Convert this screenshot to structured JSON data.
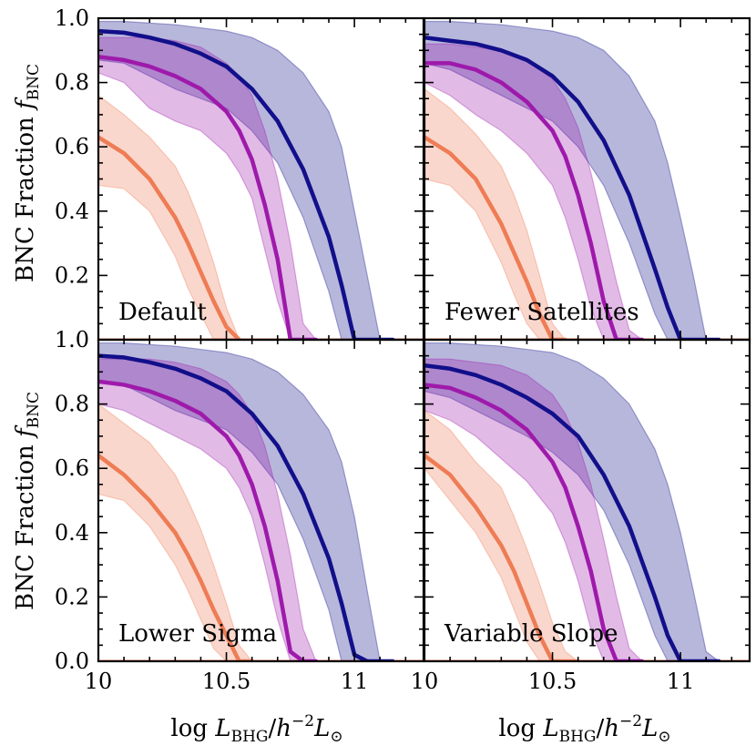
{
  "chart_data": {
    "type": "line",
    "xlabel": "log L_BHG / h^-2 L_sun",
    "ylabel": "BNC Fraction f_BNC",
    "xlim": [
      10.0,
      11.27
    ],
    "ylim": [
      0.0,
      1.0
    ],
    "x_ticks": [
      "10",
      "10.5",
      "11"
    ],
    "y_ticks": [
      "0.0",
      "0.2",
      "0.4",
      "0.6",
      "0.8",
      "1.0"
    ],
    "xlabel_parts": {
      "pre": "log ",
      "L": "L",
      "sub": "BHG",
      "slash": "/",
      "h": "h",
      "exp": "−2",
      "L2": "L",
      "sun": "⊙"
    },
    "ylabel_parts": {
      "text": "BNC Fraction ",
      "f": "f",
      "sub": "BNC"
    },
    "colors": {
      "orange": "#ee7c55",
      "purple": "#9e1aab",
      "navy": "#120f8a"
    },
    "panels": [
      {
        "label": "Default",
        "series": [
          {
            "name": "orange",
            "x": [
              10.0,
              10.1,
              10.2,
              10.3,
              10.35,
              10.4,
              10.45,
              10.5,
              10.55
            ],
            "median": [
              0.63,
              0.58,
              0.5,
              0.38,
              0.3,
              0.21,
              0.12,
              0.04,
              0.0
            ],
            "lower": [
              0.48,
              0.47,
              0.4,
              0.26,
              0.16,
              0.08,
              0.0,
              0.0,
              0.0
            ],
            "upper": [
              0.76,
              0.7,
              0.63,
              0.54,
              0.46,
              0.36,
              0.24,
              0.1,
              0.0
            ]
          },
          {
            "name": "purple",
            "x": [
              10.0,
              10.1,
              10.2,
              10.3,
              10.4,
              10.5,
              10.55,
              10.6,
              10.65,
              10.7,
              10.75,
              10.8,
              10.85
            ],
            "median": [
              0.88,
              0.87,
              0.85,
              0.82,
              0.78,
              0.71,
              0.65,
              0.56,
              0.42,
              0.25,
              0.0,
              0.0,
              0.0
            ],
            "lower": [
              0.83,
              0.8,
              0.72,
              0.68,
              0.65,
              0.58,
              0.52,
              0.44,
              0.28,
              0.12,
              0.0,
              0.0,
              0.0
            ],
            "upper": [
              0.94,
              0.94,
              0.94,
              0.93,
              0.91,
              0.86,
              0.82,
              0.76,
              0.65,
              0.5,
              0.3,
              0.05,
              0.0
            ]
          },
          {
            "name": "navy",
            "x": [
              10.0,
              10.1,
              10.2,
              10.3,
              10.4,
              10.5,
              10.6,
              10.7,
              10.8,
              10.9,
              10.95,
              11.0,
              11.05,
              11.1,
              11.15
            ],
            "median": [
              0.96,
              0.955,
              0.94,
              0.92,
              0.89,
              0.85,
              0.78,
              0.68,
              0.53,
              0.32,
              0.17,
              0.0,
              0.0,
              0.0,
              0.0
            ],
            "lower": [
              0.87,
              0.86,
              0.82,
              0.78,
              0.75,
              0.72,
              0.65,
              0.55,
              0.38,
              0.15,
              0.0,
              0.0,
              0.0,
              0.0,
              0.0
            ],
            "upper": [
              0.99,
              0.99,
              0.985,
              0.98,
              0.97,
              0.96,
              0.94,
              0.9,
              0.83,
              0.71,
              0.6,
              0.4,
              0.2,
              0.0,
              0.0
            ]
          }
        ]
      },
      {
        "label": "Fewer Satellites",
        "series": [
          {
            "name": "orange",
            "x": [
              10.0,
              10.1,
              10.2,
              10.3,
              10.35,
              10.4,
              10.45,
              10.5,
              10.55
            ],
            "median": [
              0.63,
              0.58,
              0.5,
              0.36,
              0.27,
              0.18,
              0.08,
              0.0,
              0.0
            ],
            "lower": [
              0.5,
              0.48,
              0.4,
              0.24,
              0.14,
              0.05,
              0.0,
              0.0,
              0.0
            ],
            "upper": [
              0.78,
              0.72,
              0.64,
              0.54,
              0.45,
              0.34,
              0.2,
              0.05,
              0.0
            ]
          },
          {
            "name": "purple",
            "x": [
              10.0,
              10.1,
              10.2,
              10.3,
              10.4,
              10.5,
              10.55,
              10.6,
              10.65,
              10.7,
              10.75,
              10.8,
              10.85
            ],
            "median": [
              0.86,
              0.86,
              0.84,
              0.8,
              0.74,
              0.65,
              0.57,
              0.45,
              0.3,
              0.12,
              0.0,
              0.0,
              0.0
            ],
            "lower": [
              0.8,
              0.76,
              0.7,
              0.65,
              0.58,
              0.48,
              0.38,
              0.25,
              0.1,
              0.0,
              0.0,
              0.0,
              0.0
            ],
            "upper": [
              0.92,
              0.92,
              0.91,
              0.9,
              0.87,
              0.81,
              0.75,
              0.66,
              0.52,
              0.35,
              0.18,
              0.03,
              0.0
            ]
          },
          {
            "name": "navy",
            "x": [
              10.0,
              10.1,
              10.2,
              10.3,
              10.4,
              10.5,
              10.6,
              10.7,
              10.8,
              10.9,
              10.95,
              11.0,
              11.05,
              11.1,
              11.15
            ],
            "median": [
              0.94,
              0.93,
              0.92,
              0.9,
              0.87,
              0.82,
              0.74,
              0.62,
              0.45,
              0.22,
              0.1,
              0.0,
              0.0,
              0.0,
              0.0
            ],
            "lower": [
              0.86,
              0.84,
              0.8,
              0.76,
              0.72,
              0.68,
              0.6,
              0.48,
              0.3,
              0.08,
              0.0,
              0.0,
              0.0,
              0.0,
              0.0
            ],
            "upper": [
              0.99,
              0.99,
              0.985,
              0.98,
              0.97,
              0.96,
              0.94,
              0.9,
              0.82,
              0.68,
              0.55,
              0.38,
              0.2,
              0.0,
              0.0
            ]
          }
        ]
      },
      {
        "label": "Lower Sigma",
        "series": [
          {
            "name": "orange",
            "x": [
              10.0,
              10.1,
              10.2,
              10.3,
              10.35,
              10.4,
              10.45,
              10.5,
              10.55,
              10.6
            ],
            "median": [
              0.64,
              0.58,
              0.5,
              0.4,
              0.33,
              0.25,
              0.16,
              0.08,
              0.0,
              0.0
            ],
            "lower": [
              0.52,
              0.5,
              0.42,
              0.3,
              0.22,
              0.13,
              0.04,
              0.0,
              0.0,
              0.0
            ],
            "upper": [
              0.8,
              0.74,
              0.68,
              0.58,
              0.5,
              0.41,
              0.3,
              0.18,
              0.05,
              0.0
            ]
          },
          {
            "name": "purple",
            "x": [
              10.0,
              10.1,
              10.2,
              10.3,
              10.4,
              10.5,
              10.55,
              10.6,
              10.65,
              10.7,
              10.75,
              10.8,
              10.85
            ],
            "median": [
              0.87,
              0.86,
              0.84,
              0.81,
              0.77,
              0.7,
              0.64,
              0.55,
              0.42,
              0.25,
              0.03,
              0.0,
              0.0
            ],
            "lower": [
              0.8,
              0.78,
              0.74,
              0.7,
              0.66,
              0.6,
              0.54,
              0.45,
              0.3,
              0.13,
              0.0,
              0.0,
              0.0
            ],
            "upper": [
              0.94,
              0.94,
              0.94,
              0.93,
              0.91,
              0.87,
              0.83,
              0.77,
              0.67,
              0.52,
              0.33,
              0.1,
              0.0
            ]
          },
          {
            "name": "navy",
            "x": [
              10.0,
              10.1,
              10.2,
              10.3,
              10.4,
              10.5,
              10.6,
              10.7,
              10.8,
              10.9,
              10.95,
              11.0,
              11.05,
              11.1,
              11.15
            ],
            "median": [
              0.95,
              0.945,
              0.93,
              0.91,
              0.88,
              0.84,
              0.77,
              0.67,
              0.52,
              0.32,
              0.18,
              0.02,
              0.0,
              0.0,
              0.0
            ],
            "lower": [
              0.87,
              0.86,
              0.82,
              0.78,
              0.75,
              0.72,
              0.65,
              0.55,
              0.38,
              0.16,
              0.0,
              0.0,
              0.0,
              0.0,
              0.0
            ],
            "upper": [
              0.99,
              0.99,
              0.985,
              0.98,
              0.97,
              0.96,
              0.94,
              0.9,
              0.83,
              0.72,
              0.62,
              0.45,
              0.22,
              0.0,
              0.0
            ]
          }
        ]
      },
      {
        "label": "Variable Slope",
        "series": [
          {
            "name": "orange",
            "x": [
              10.0,
              10.1,
              10.2,
              10.3,
              10.35,
              10.4,
              10.45,
              10.5,
              10.55,
              10.6
            ],
            "median": [
              0.64,
              0.58,
              0.48,
              0.36,
              0.28,
              0.18,
              0.08,
              0.0,
              0.0,
              0.0
            ],
            "lower": [
              0.6,
              0.5,
              0.4,
              0.26,
              0.16,
              0.06,
              0.0,
              0.0,
              0.0,
              0.0
            ],
            "upper": [
              0.78,
              0.72,
              0.62,
              0.54,
              0.45,
              0.35,
              0.24,
              0.12,
              0.03,
              0.0
            ]
          },
          {
            "name": "purple",
            "x": [
              10.0,
              10.1,
              10.2,
              10.3,
              10.4,
              10.5,
              10.55,
              10.6,
              10.65,
              10.7,
              10.75,
              10.8,
              10.85
            ],
            "median": [
              0.86,
              0.85,
              0.82,
              0.78,
              0.72,
              0.62,
              0.54,
              0.42,
              0.28,
              0.1,
              0.0,
              0.0,
              0.0
            ],
            "lower": [
              0.78,
              0.75,
              0.7,
              0.63,
              0.56,
              0.46,
              0.37,
              0.25,
              0.1,
              0.0,
              0.0,
              0.0,
              0.0
            ],
            "upper": [
              0.94,
              0.94,
              0.93,
              0.92,
              0.89,
              0.83,
              0.77,
              0.68,
              0.55,
              0.38,
              0.2,
              0.04,
              0.0
            ]
          },
          {
            "name": "navy",
            "x": [
              10.0,
              10.1,
              10.2,
              10.3,
              10.4,
              10.5,
              10.6,
              10.7,
              10.8,
              10.9,
              10.95,
              11.0,
              11.05,
              11.1,
              11.15
            ],
            "median": [
              0.92,
              0.91,
              0.89,
              0.86,
              0.82,
              0.77,
              0.7,
              0.58,
              0.42,
              0.2,
              0.08,
              0.0,
              0.0,
              0.0,
              0.0
            ],
            "lower": [
              0.84,
              0.82,
              0.78,
              0.74,
              0.7,
              0.65,
              0.58,
              0.47,
              0.3,
              0.08,
              0.0,
              0.0,
              0.0,
              0.0,
              0.0
            ],
            "upper": [
              0.99,
              0.99,
              0.985,
              0.98,
              0.97,
              0.96,
              0.93,
              0.88,
              0.8,
              0.66,
              0.55,
              0.4,
              0.22,
              0.03,
              0.0
            ]
          }
        ]
      }
    ]
  }
}
